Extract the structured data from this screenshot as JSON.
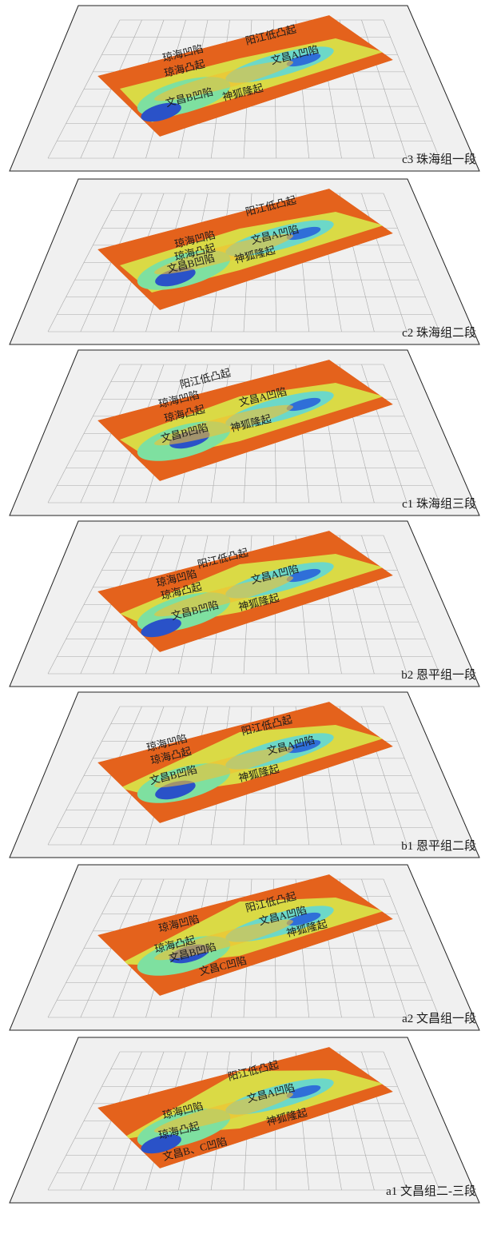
{
  "panels": [
    {
      "caption": "c3  珠海组一段",
      "labels": [
        "阳江低凸起",
        "琼海凹陷",
        "琼海凸起",
        "文昌A凹陷",
        "文昌B凹陷",
        "神狐隆起"
      ]
    },
    {
      "caption": "c2  珠海组二段",
      "labels": [
        "阳江低凸起",
        "琼海凹陷",
        "琼海凸起",
        "文昌A凹陷",
        "文昌B凹陷",
        "神狐隆起"
      ]
    },
    {
      "caption": "c1  珠海组三段",
      "labels": [
        "阳江低凸起",
        "琼海凹陷",
        "琼海凸起",
        "文昌A凹陷",
        "文昌B凹陷",
        "神狐隆起"
      ]
    },
    {
      "caption": "b2  恩平组一段",
      "labels": [
        "阳江低凸起",
        "琼海凹陷",
        "琼海凸起",
        "文昌A凹陷",
        "文昌B凹陷",
        "神狐隆起"
      ]
    },
    {
      "caption": "b1  恩平组二段",
      "labels": [
        "阳江低凸起",
        "琼海凹陷",
        "琼海凸起",
        "文昌A凹陷",
        "文昌B凹陷",
        "神狐隆起"
      ]
    },
    {
      "caption": "a2  文昌组一段",
      "labels": [
        "阳江低凸起",
        "琼海凹陷",
        "文昌A凹陷",
        "琼海凸起",
        "神狐隆起",
        "文昌B凹陷",
        "文昌C凹陷"
      ]
    },
    {
      "caption": "a1  文昌组二-三段",
      "labels": [
        "阳江低凸起",
        "琼海凹陷",
        "文昌A凹陷",
        "琼海凸起",
        "神狐隆起",
        "文昌B、C凹陷"
      ]
    }
  ]
}
